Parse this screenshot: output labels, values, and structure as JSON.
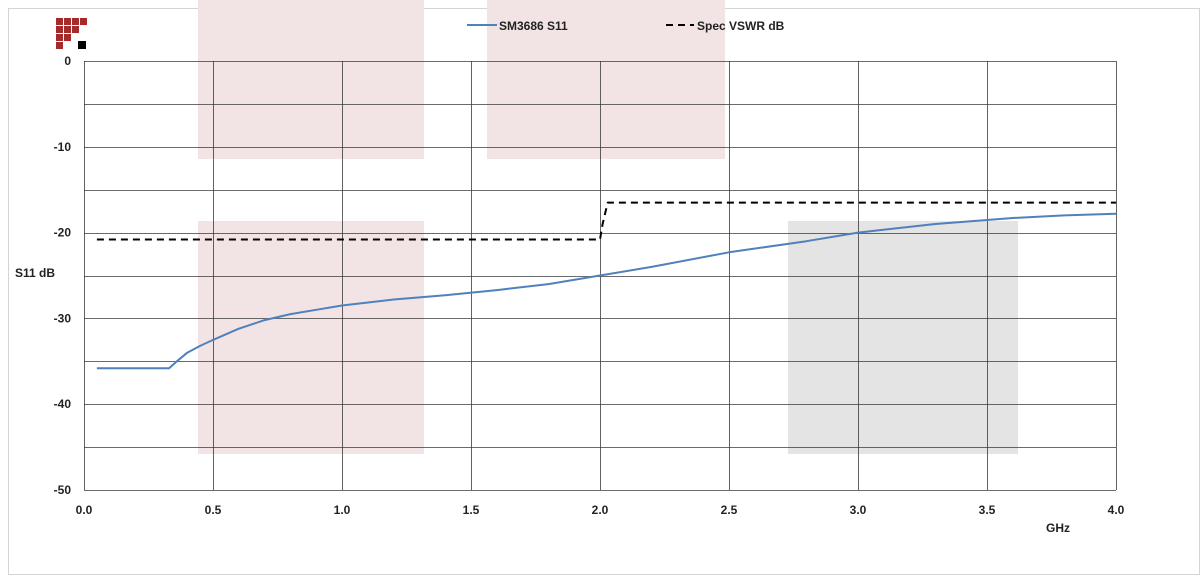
{
  "chart_data": {
    "type": "line",
    "title": "",
    "xlabel": "GHz",
    "ylabel": "S11 dB",
    "xlim": [
      0,
      4
    ],
    "ylim": [
      -50,
      0
    ],
    "x_ticks": [
      "0.0",
      "0.5",
      "1.0",
      "1.5",
      "2.0",
      "2.5",
      "3.0",
      "3.5",
      "4.0"
    ],
    "y_ticks": [
      "0",
      "-10",
      "-20",
      "-30",
      "-40",
      "-50"
    ],
    "grid": true,
    "legend": "top-center",
    "series": [
      {
        "name": "SM3686 S11",
        "color": "#4f81bd",
        "style": "solid",
        "x": [
          0.05,
          0.33,
          0.36,
          0.4,
          0.45,
          0.5,
          0.6,
          0.7,
          0.8,
          0.9,
          1.0,
          1.2,
          1.4,
          1.6,
          1.8,
          2.0,
          2.2,
          2.5,
          2.8,
          3.0,
          3.3,
          3.6,
          3.8,
          4.0
        ],
        "y": [
          -35.8,
          -35.8,
          -35.0,
          -34.0,
          -33.2,
          -32.5,
          -31.2,
          -30.2,
          -29.5,
          -29.0,
          -28.5,
          -27.8,
          -27.3,
          -26.7,
          -26.0,
          -25.0,
          -24.0,
          -22.3,
          -21.0,
          -20.0,
          -19.0,
          -18.3,
          -18.0,
          -17.8
        ]
      },
      {
        "name": "Spec VSWR dB",
        "color": "#000000",
        "style": "dashed",
        "x": [
          0.05,
          2.0,
          2.01,
          2.03,
          4.0
        ],
        "y": [
          -20.8,
          -20.8,
          -19.0,
          -16.5,
          -16.5
        ]
      }
    ]
  }
}
